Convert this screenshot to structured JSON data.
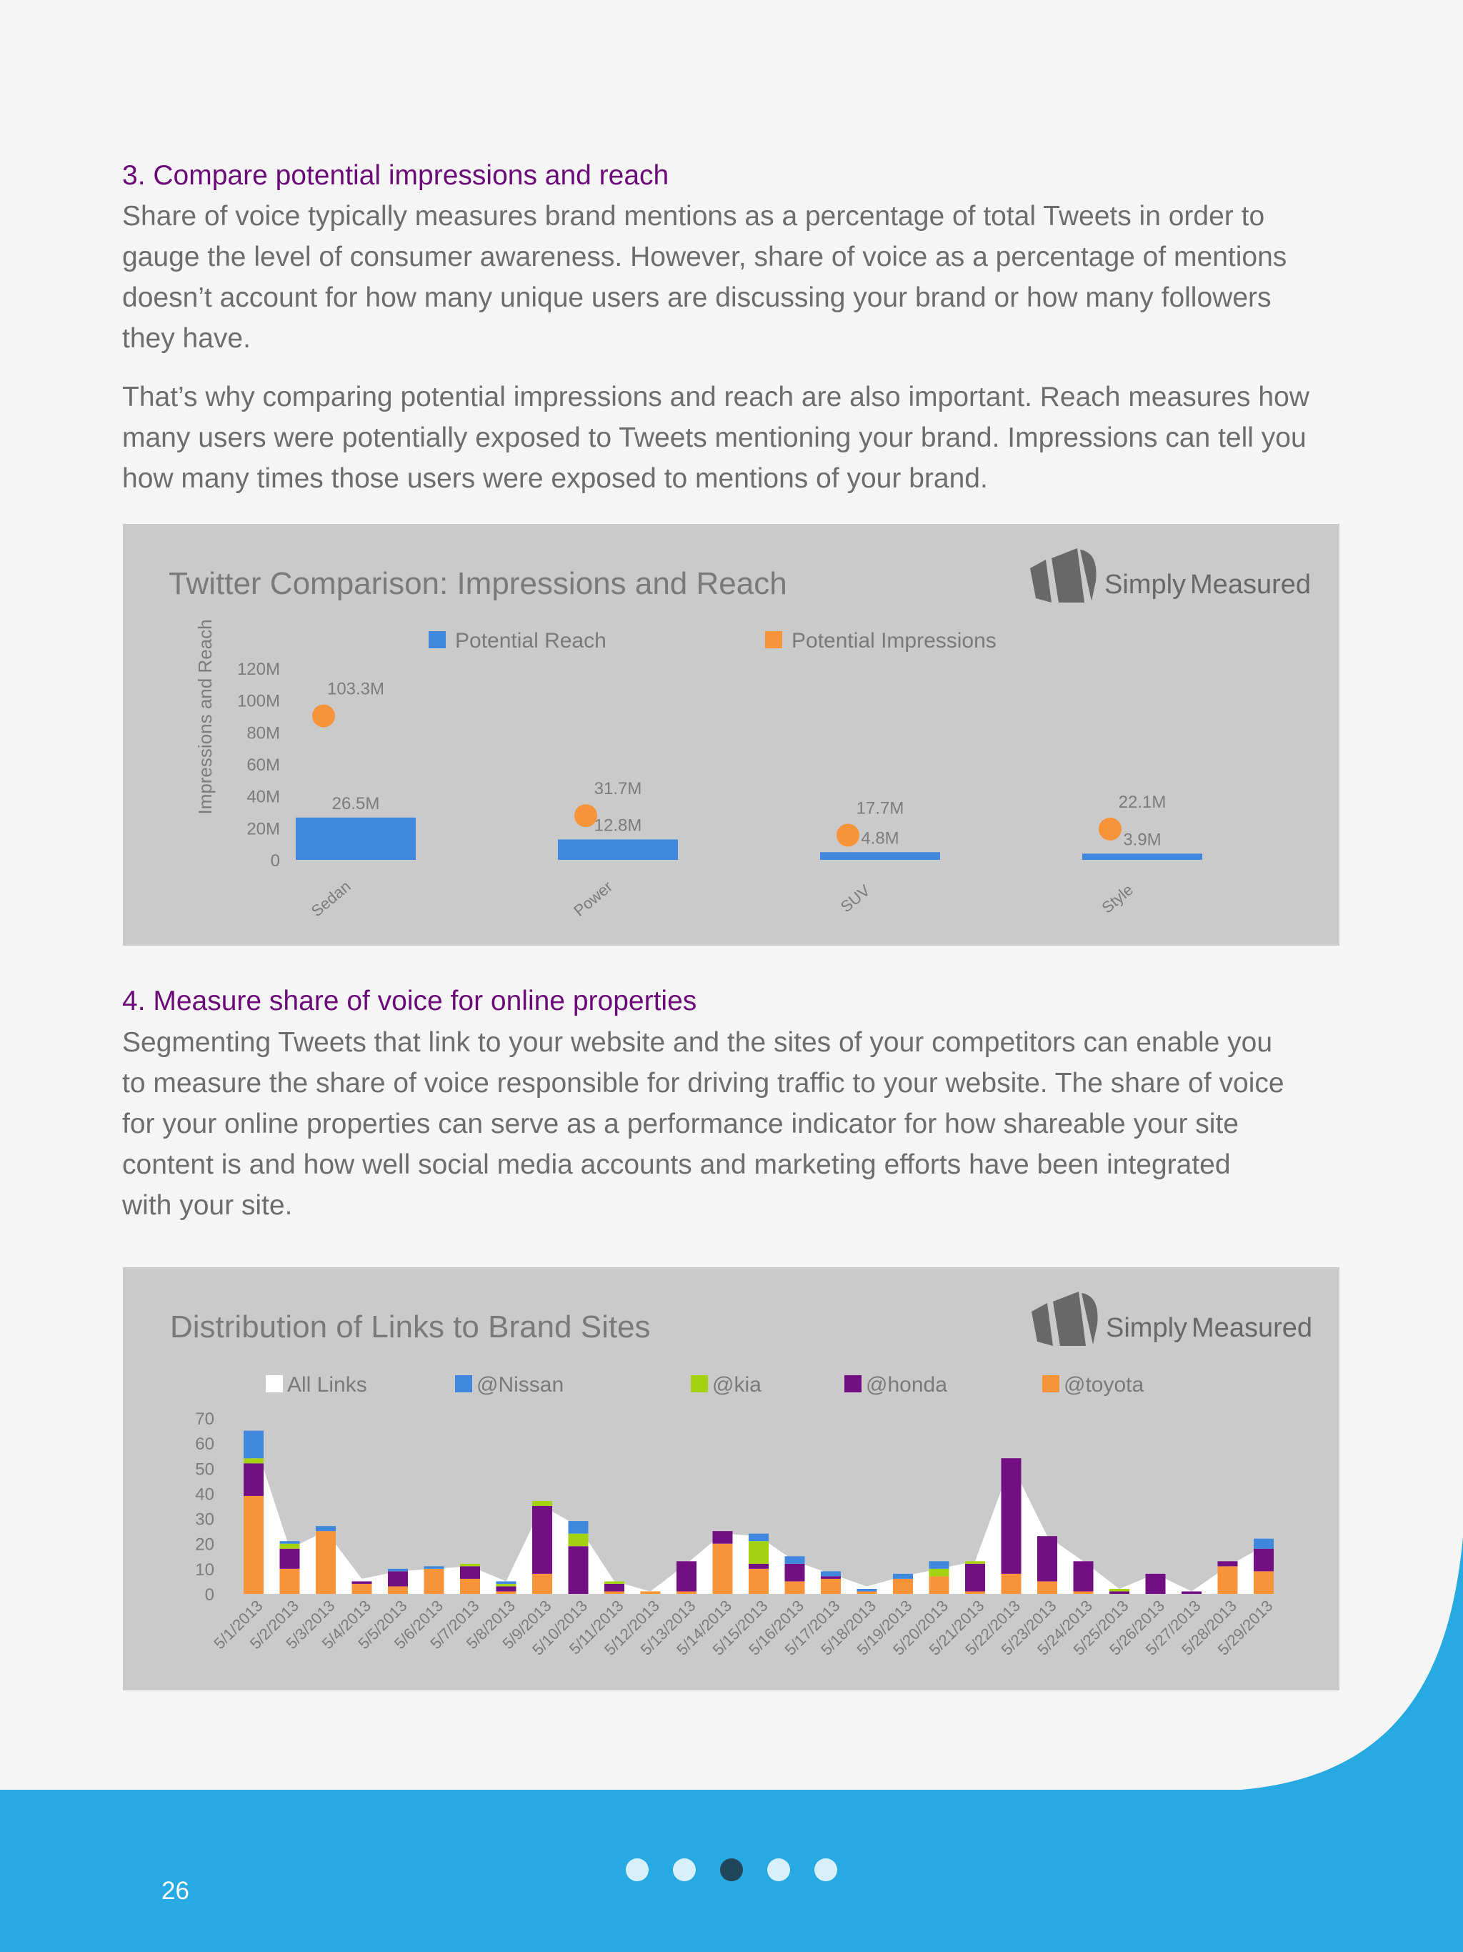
{
  "colors": {
    "background": "#f6f5f6",
    "heading": "#6a0b77",
    "body_text": "#6d6d6d",
    "panel": "#cbcacb",
    "panel_text": "#7a7a7a",
    "tick_text": "#7c7c7c",
    "logo": "#686868",
    "footer": "#27a9e1",
    "page_number": "#ffffff",
    "dot_active": "#23475a",
    "dot_inactive": "#d7f0fb"
  },
  "section3": {
    "title": "3. Compare potential impressions and reach",
    "paragraph1_lines": [
      "Share of voice typically measures brand mentions as a percentage of total Tweets in order to",
      "gauge the level of consumer awareness. However, share of voice as a percentage of mentions",
      "doesn’t account for how many unique users are discussing your brand or how many followers",
      "they have."
    ],
    "paragraph2_lines": [
      "That’s why comparing potential impressions and reach are also important. Reach measures how",
      "many users were potentially exposed to Tweets mentioning your brand. Impressions can tell you",
      "how many times those users were exposed to mentions of your brand."
    ]
  },
  "section4": {
    "title": "4. Measure share of voice for online properties",
    "paragraph_lines": [
      "Segmenting Tweets that link to your website and the sites of your competitors can enable you",
      "to measure the share of voice responsible for driving traffic to your website. The share of voice",
      "for your online properties can serve as a performance indicator for how shareable your site",
      "content is and how well social media accounts and marketing efforts have been integrated",
      "with your site."
    ]
  },
  "chart_data": [
    {
      "type": "bar",
      "title": "Twitter Comparison: Impressions and Reach",
      "logo_text": [
        "Simply",
        "Measured"
      ],
      "ylabel": "Impressions and Reach",
      "xlabel": "",
      "ylim": [
        0,
        120
      ],
      "y_ticks": [
        0,
        20,
        40,
        60,
        80,
        100,
        120
      ],
      "y_tick_labels": [
        "0",
        "20M",
        "40M",
        "60M",
        "80M",
        "100M",
        "120M"
      ],
      "categories": [
        "Sedan",
        "Power",
        "SUV",
        "Style"
      ],
      "grid": false,
      "legend_position": "top",
      "series": [
        {
          "name": "Potential Reach",
          "mark": "bar",
          "color": "#3f88dd",
          "values": [
            26.5,
            12.8,
            4.8,
            3.9
          ],
          "labels": [
            "26.5M",
            "12.8M",
            "4.8M",
            "3.9M"
          ]
        },
        {
          "name": "Potential Impressions",
          "mark": "point",
          "color": "#f7943a",
          "values": [
            103.3,
            31.7,
            17.7,
            22.1
          ],
          "labels": [
            "103.3M",
            "31.7M",
            "17.7M",
            "22.1M"
          ]
        }
      ]
    },
    {
      "type": "bar",
      "stacked": true,
      "title": "Distribution of Links to Brand Sites",
      "logo_text": [
        "Simply",
        "Measured"
      ],
      "xlabel": "",
      "ylabel": "",
      "ylim": [
        0,
        70
      ],
      "y_ticks": [
        0,
        10,
        20,
        30,
        40,
        50,
        60,
        70
      ],
      "grid": false,
      "legend_position": "top",
      "categories": [
        "5/1/2013",
        "5/2/2013",
        "5/3/2013",
        "5/4/2013",
        "5/5/2013",
        "5/6/2013",
        "5/7/2013",
        "5/8/2013",
        "5/9/2013",
        "5/10/2013",
        "5/11/2013",
        "5/12/2013",
        "5/13/2013",
        "5/14/2013",
        "5/15/2013",
        "5/16/2013",
        "5/17/2013",
        "5/18/2013",
        "5/19/2013",
        "5/20/2013",
        "5/21/2013",
        "5/22/2013",
        "5/23/2013",
        "5/24/2013",
        "5/25/2013",
        "5/26/2013",
        "5/27/2013",
        "5/28/2013",
        "5/29/2013"
      ],
      "area_series": {
        "name": "All Links",
        "color": "#ffffff",
        "values": [
          62,
          18,
          25,
          6,
          9,
          10,
          11,
          5,
          35,
          27,
          5,
          1,
          12,
          24,
          23,
          13,
          8,
          3,
          7,
          10,
          13,
          52,
          23,
          13,
          2,
          8,
          1,
          11,
          19
        ]
      },
      "series": [
        {
          "name": "@toyota",
          "color": "#f7943a",
          "values": [
            39,
            10,
            25,
            4,
            3,
            10,
            6,
            1,
            8,
            0,
            1,
            1,
            1,
            20,
            10,
            5,
            6,
            1,
            6,
            7,
            1,
            8,
            5,
            1,
            0,
            0,
            0,
            11,
            9
          ]
        },
        {
          "name": "@honda",
          "color": "#720f82",
          "values": [
            13,
            8,
            0,
            1,
            6,
            0,
            5,
            2,
            27,
            19,
            3,
            0,
            12,
            5,
            2,
            7,
            1,
            0,
            0,
            0,
            11,
            46,
            18,
            12,
            1,
            8,
            1,
            2,
            9
          ]
        },
        {
          "name": "@kia",
          "color": "#a4d210",
          "values": [
            2,
            2,
            0,
            0,
            0,
            0,
            1,
            1,
            2,
            5,
            1,
            0,
            0,
            0,
            9,
            0,
            0,
            0,
            0,
            3,
            1,
            0,
            0,
            0,
            1,
            0,
            0,
            0,
            0
          ]
        },
        {
          "name": "@Nissan",
          "color": "#3f88dd",
          "values": [
            11,
            1,
            2,
            0,
            1,
            1,
            0,
            1,
            0,
            5,
            0,
            0,
            0,
            0,
            3,
            3,
            2,
            1,
            2,
            3,
            0,
            0,
            0,
            0,
            0,
            0,
            0,
            0,
            4
          ]
        }
      ],
      "legend_order": [
        "All Links",
        "@Nissan",
        "@kia",
        "@honda",
        "@toyota"
      ]
    }
  ],
  "footer": {
    "page_number": "26",
    "pagination": {
      "count": 5,
      "active_index": 2
    }
  }
}
